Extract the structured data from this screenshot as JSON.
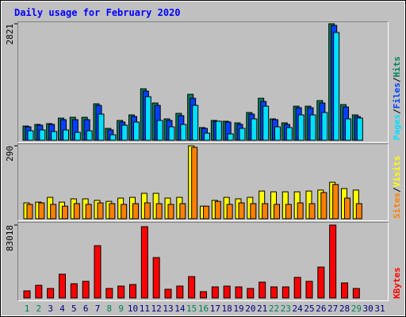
{
  "chart_data": {
    "type": "bar",
    "title": "Daily usage for February 2020",
    "categories": [
      "1",
      "2",
      "3",
      "4",
      "5",
      "6",
      "7",
      "8",
      "9",
      "10",
      "11",
      "12",
      "13",
      "14",
      "15",
      "16",
      "17",
      "18",
      "19",
      "20",
      "21",
      "22",
      "23",
      "24",
      "25",
      "26",
      "27",
      "28",
      "29",
      "30",
      "31"
    ],
    "label_colors": [
      "#00805c",
      "#00805c",
      "#000080",
      "#000080",
      "#000080",
      "#000080",
      "#000080",
      "#00805c",
      "#00805c",
      "#000080",
      "#000080",
      "#000080",
      "#000080",
      "#000080",
      "#00805c",
      "#00805c",
      "#000080",
      "#000080",
      "#000080",
      "#000080",
      "#000080",
      "#00805c",
      "#00805c",
      "#000080",
      "#000080",
      "#000080",
      "#000080",
      "#000080",
      "#00805c",
      "#000080",
      "#000080"
    ],
    "legend_separator": "/",
    "panels": [
      {
        "ylim": [
          0,
          2821
        ],
        "yticks": [
          2821
        ],
        "series": [
          {
            "name": "Hits",
            "color": "#00805c",
            "values": [
              345,
              384,
              403,
              537,
              557,
              557,
              883,
              288,
              480,
              614,
              1247,
              902,
              518,
              652,
              1113,
              307,
              480,
              461,
              422,
              672,
              1017,
              518,
              422,
              825,
              825,
              960,
              2821,
              864,
              614,
              null,
              null
            ]
          },
          {
            "name": "Files",
            "color": "#0040ff",
            "values": [
              326,
              365,
              384,
              499,
              499,
              499,
              845,
              250,
              441,
              576,
              1190,
              845,
              480,
              595,
              1017,
              288,
              461,
              441,
              384,
              633,
              940,
              499,
              384,
              787,
              787,
              902,
              2782,
              806,
              576,
              null,
              null
            ]
          },
          {
            "name": "Pages",
            "color": "#00e0ff",
            "values": [
              230,
              250,
              211,
              250,
              192,
              230,
              633,
              134,
              365,
              441,
              1055,
              480,
              326,
              384,
              845,
              173,
              461,
              154,
              288,
              518,
              825,
              326,
              307,
              614,
              614,
              672,
              2610,
              518,
              537,
              null,
              null
            ]
          }
        ]
      },
      {
        "ylim": [
          0,
          290
        ],
        "yticks": [
          290
        ],
        "series": [
          {
            "name": "Visits",
            "color": "#ffff00",
            "values": [
              63,
              66,
              85,
              66,
              79,
              79,
              73,
              69,
              82,
              85,
              101,
              101,
              82,
              85,
              290,
              50,
              73,
              85,
              79,
              85,
              110,
              107,
              107,
              107,
              110,
              114,
              145,
              120,
              114,
              null,
              null
            ]
          },
          {
            "name": "Sites",
            "color": "#ff8000",
            "values": [
              57,
              63,
              57,
              50,
              60,
              57,
              63,
              60,
              57,
              60,
              63,
              60,
              57,
              60,
              284,
              50,
              69,
              57,
              63,
              60,
              60,
              57,
              57,
              63,
              60,
              104,
              136,
              82,
              60,
              null,
              null
            ]
          }
        ]
      },
      {
        "ylim": [
          0,
          83018
        ],
        "yticks": [
          83018
        ],
        "series": [
          {
            "name": "KBytes",
            "color": "#ff0000",
            "values": [
              8121,
              14438,
              10828,
              27071,
              16243,
              18951,
              59556,
              10828,
              13535,
              15340,
              81213,
              46021,
              9926,
              13535,
              24364,
              7219,
              12633,
              13535,
              12633,
              10828,
              18047,
              12633,
              12633,
              23461,
              18950,
              35192,
              83018,
              17145,
              10828,
              null,
              null
            ]
          }
        ]
      }
    ]
  }
}
